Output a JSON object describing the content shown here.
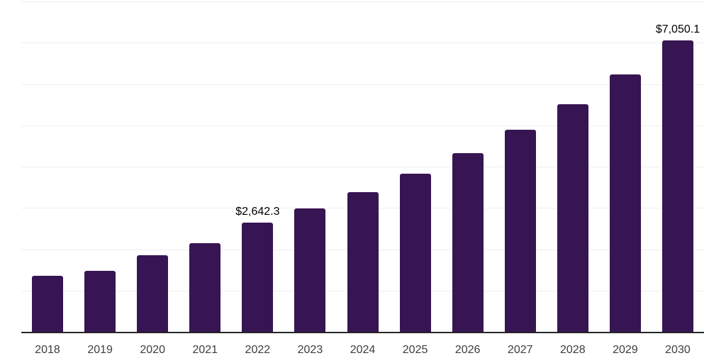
{
  "chart_data": {
    "type": "bar",
    "title": "",
    "xlabel": "",
    "ylabel": "",
    "categories": [
      "2018",
      "2019",
      "2020",
      "2021",
      "2022",
      "2023",
      "2024",
      "2025",
      "2026",
      "2027",
      "2028",
      "2029",
      "2030"
    ],
    "values": [
      1350,
      1480,
      1855,
      2140,
      2642.3,
      2980,
      3380,
      3830,
      4325,
      4890,
      5515,
      6230,
      7050.1
    ],
    "value_labels": [
      "",
      "",
      "",
      "",
      "$2,642.3",
      "",
      "",
      "",
      "",
      "",
      "",
      "",
      "$7,050.1"
    ],
    "ylim": [
      0,
      8000
    ],
    "gridline_step": 1000,
    "grid": "horizontal",
    "y_tick_labels_shown": false,
    "legend": "none",
    "colors": {
      "bar": "#371552",
      "axis_line": "#262626",
      "gridline": "#efefef",
      "tick_label": "#3d3d3d",
      "data_label": "#000000",
      "background": "#ffffff"
    }
  }
}
